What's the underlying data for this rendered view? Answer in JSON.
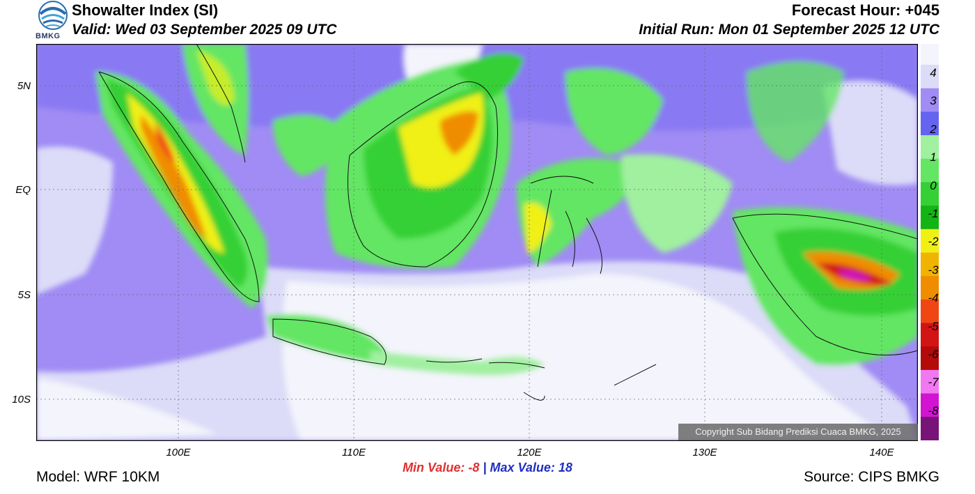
{
  "header": {
    "title": "Showalter Index (SI)",
    "valid": "Valid: Wed 03 September 2025 09 UTC",
    "forecast_hour": "Forecast Hour: +045",
    "initial_run": "Initial Run: Mon 01 September 2025 12 UTC",
    "logo_text": "BMKG"
  },
  "axes": {
    "lat_labels": [
      "5N",
      "EQ",
      "5S",
      "10S"
    ],
    "lon_labels": [
      "100E",
      "110E",
      "120E",
      "130E",
      "140E"
    ]
  },
  "stats": {
    "min_label": "Min Value:",
    "min_value": "-8",
    "separator": "|",
    "max_label": "Max Value:",
    "max_value": "18"
  },
  "footer": {
    "model": "Model: WRF 10KM",
    "source": "Source: CIPS BMKG",
    "copyright": "Copyright Sub Bidang Prediksi Cuaca BMKG, 2025"
  },
  "legend": {
    "labels": [
      "4",
      "3",
      "2",
      "1",
      "0",
      "-1",
      "-2",
      "-3",
      "-4",
      "-5",
      "-6",
      "-7",
      "-8"
    ],
    "colors": [
      "#f4f4fc",
      "#dcdcf8",
      "#a08cf4",
      "#6464f0",
      "#a0f0a0",
      "#64e664",
      "#34d034",
      "#14b414",
      "#f0f014",
      "#f0b400",
      "#f08c00",
      "#f04614",
      "#d21414",
      "#b40a0a",
      "#f078f0",
      "#d214d2",
      "#781478"
    ]
  }
}
